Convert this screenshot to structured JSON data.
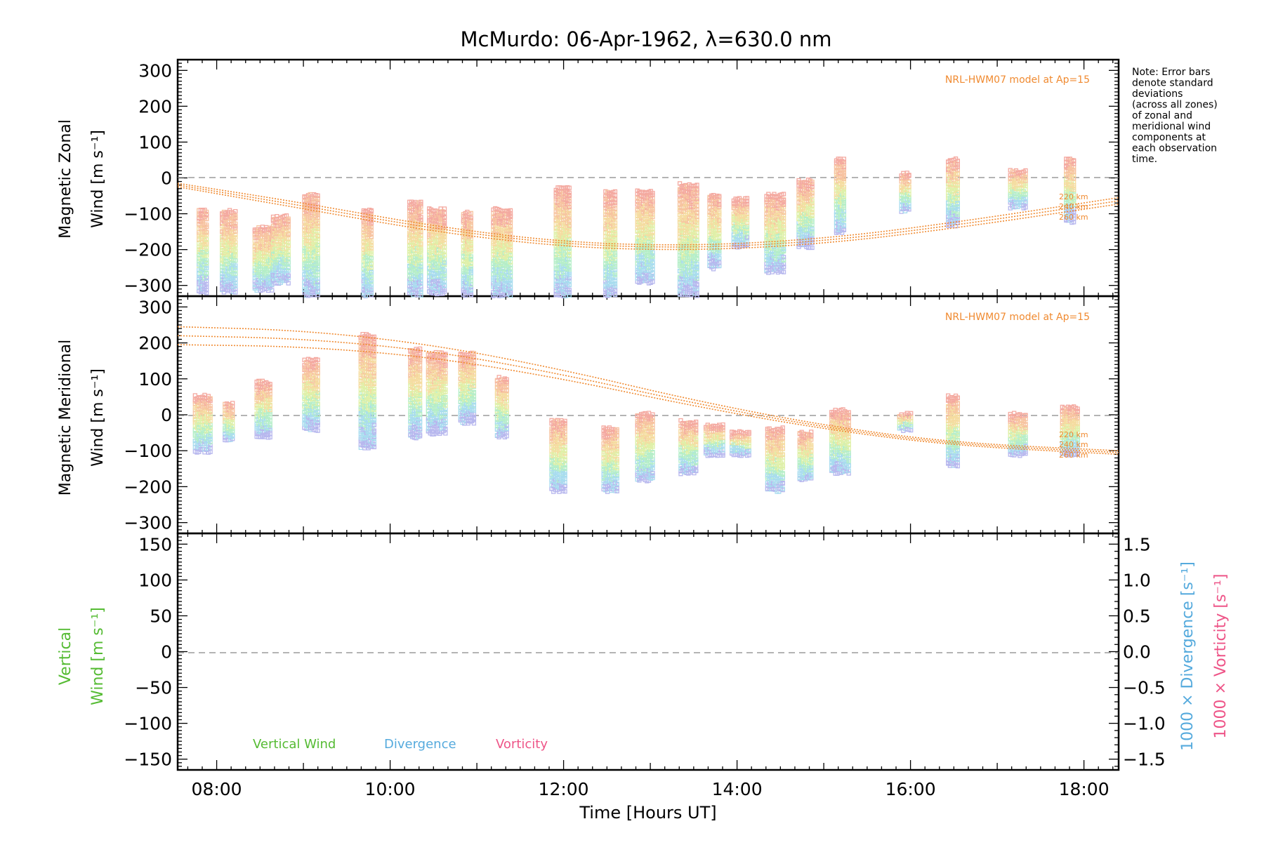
{
  "title": "McMurdo: 06-Apr-1962, λ=630.0 nm",
  "note": [
    "Note: Error bars",
    "denote standard",
    "deviations",
    "(across all zones)",
    "of zonal and",
    "meridional wind",
    "components at",
    "each observation",
    "time."
  ],
  "x_axis": {
    "label": "Time [Hours UT]",
    "ticks": [
      "08:00",
      "10:00",
      "12:00",
      "14:00",
      "16:00",
      "18:00"
    ]
  },
  "panels": {
    "zonal": {
      "ylabel_lines": [
        "Magnetic Zonal",
        "Wind [m s⁻¹]"
      ],
      "yticks": [
        "300",
        "200",
        "100",
        "0",
        "−100",
        "−200",
        "−300"
      ],
      "model_label": "NRL-HWM07 model at Ap=15",
      "altitudes": [
        "220 km",
        "240 km",
        "260 km"
      ]
    },
    "meridional": {
      "ylabel_lines": [
        "Magnetic Meridional",
        "Wind [m s⁻¹]"
      ],
      "yticks": [
        "300",
        "200",
        "100",
        "0",
        "−100",
        "−200",
        "−300"
      ],
      "model_label": "NRL-HWM07 model at Ap=15",
      "altitudes": [
        "220 km",
        "240 km",
        "260 km"
      ]
    },
    "vertical": {
      "ylabel_lines": [
        "Vertical",
        "Wind [m s⁻¹]"
      ],
      "yticks": [
        "150",
        "100",
        "50",
        "0",
        "−50",
        "−100",
        "−150"
      ],
      "right_yticks": [
        "1.5",
        "1.0",
        "0.5",
        "0.0",
        "−0.5",
        "−1.0",
        "−1.5"
      ],
      "right_label_div": "1000 × Divergence [s⁻¹]",
      "right_label_vort": "1000 × Vorticity [s⁻¹]",
      "legend": [
        "Vertical Wind",
        "Divergence",
        "Vorticity"
      ]
    }
  },
  "colors": {
    "model": "#f08a30",
    "vertical": "#55bb33",
    "divergence": "#55aadd",
    "vorticity": "#ee5588",
    "zero_line": "#888888"
  },
  "chart_data": [
    {
      "type": "scatter",
      "title": "McMurdo: 06-Apr-1962, λ=630.0 nm",
      "ylabel": "Magnetic Zonal Wind [m s⁻¹]",
      "xlabel": "Time [Hours UT]",
      "xlim": [
        7.55,
        18.4
      ],
      "ylim": [
        -330,
        330
      ],
      "grid": false,
      "observation_groups": [
        {
          "t": 7.85,
          "low": -320,
          "high": -90
        },
        {
          "t": 8.15,
          "low": -315,
          "high": -95
        },
        {
          "t": 8.55,
          "low": -310,
          "high": -140
        },
        {
          "t": 8.75,
          "low": -290,
          "high": -110
        },
        {
          "t": 9.1,
          "low": -330,
          "high": -50
        },
        {
          "t": 9.75,
          "low": -330,
          "high": -90
        },
        {
          "t": 10.3,
          "low": -330,
          "high": -70
        },
        {
          "t": 10.55,
          "low": -320,
          "high": -90
        },
        {
          "t": 10.9,
          "low": -330,
          "high": -100
        },
        {
          "t": 11.3,
          "low": -330,
          "high": -90
        },
        {
          "t": 12.0,
          "low": -330,
          "high": -30
        },
        {
          "t": 12.55,
          "low": -330,
          "high": -40
        },
        {
          "t": 12.95,
          "low": -290,
          "high": -40
        },
        {
          "t": 13.45,
          "low": -330,
          "high": -20
        },
        {
          "t": 13.75,
          "low": -250,
          "high": -50
        },
        {
          "t": 14.05,
          "low": -190,
          "high": -60
        },
        {
          "t": 14.45,
          "low": -260,
          "high": -50
        },
        {
          "t": 14.8,
          "low": -190,
          "high": -10
        },
        {
          "t": 15.2,
          "low": -150,
          "high": 50
        },
        {
          "t": 15.95,
          "low": -90,
          "high": 10
        },
        {
          "t": 16.5,
          "low": -130,
          "high": 50
        },
        {
          "t": 17.25,
          "low": -80,
          "high": 20
        },
        {
          "t": 17.85,
          "low": -120,
          "high": 50
        }
      ],
      "model_series": [
        {
          "name": "220 km",
          "x": [
            7.55,
            9,
            10.5,
            12,
            13.5,
            15,
            16.5,
            18.4
          ],
          "y": [
            -15,
            -70,
            -135,
            -180,
            -190,
            -170,
            -125,
            -55
          ]
        },
        {
          "name": "240 km",
          "x": [
            7.55,
            9,
            10.5,
            12,
            13.5,
            15,
            16.5,
            18.4
          ],
          "y": [
            -20,
            -78,
            -142,
            -186,
            -196,
            -177,
            -133,
            -64
          ]
        },
        {
          "name": "260 km",
          "x": [
            7.55,
            9,
            10.5,
            12,
            13.5,
            15,
            16.5,
            18.4
          ],
          "y": [
            -25,
            -86,
            -150,
            -193,
            -203,
            -184,
            -141,
            -73
          ]
        }
      ]
    },
    {
      "type": "scatter",
      "ylabel": "Magnetic Meridional Wind [m s⁻¹]",
      "xlabel": "Time [Hours UT]",
      "xlim": [
        7.55,
        18.4
      ],
      "ylim": [
        -330,
        330
      ],
      "grid": false,
      "observation_groups": [
        {
          "t": 7.85,
          "low": -100,
          "high": 50
        },
        {
          "t": 8.15,
          "low": -70,
          "high": 30
        },
        {
          "t": 8.55,
          "low": -60,
          "high": 90
        },
        {
          "t": 9.1,
          "low": -40,
          "high": 150
        },
        {
          "t": 9.75,
          "low": -90,
          "high": 220
        },
        {
          "t": 10.3,
          "low": -60,
          "high": 180
        },
        {
          "t": 10.55,
          "low": -50,
          "high": 170
        },
        {
          "t": 10.9,
          "low": -20,
          "high": 170
        },
        {
          "t": 11.3,
          "low": -60,
          "high": 100
        },
        {
          "t": 11.95,
          "low": -210,
          "high": -20
        },
        {
          "t": 12.55,
          "low": -210,
          "high": -40
        },
        {
          "t": 12.95,
          "low": -180,
          "high": 0
        },
        {
          "t": 13.45,
          "low": -160,
          "high": -20
        },
        {
          "t": 13.75,
          "low": -110,
          "high": -30
        },
        {
          "t": 14.05,
          "low": -110,
          "high": -50
        },
        {
          "t": 14.45,
          "low": -210,
          "high": -40
        },
        {
          "t": 14.8,
          "low": -180,
          "high": -50
        },
        {
          "t": 15.2,
          "low": -160,
          "high": 10
        },
        {
          "t": 15.95,
          "low": -40,
          "high": 0
        },
        {
          "t": 16.5,
          "low": -140,
          "high": 50
        },
        {
          "t": 17.25,
          "low": -110,
          "high": 0
        },
        {
          "t": 17.85,
          "low": -110,
          "high": 20
        }
      ],
      "model_series": [
        {
          "name": "220 km",
          "x": [
            7.55,
            9,
            10.5,
            12,
            13.5,
            15,
            16.5,
            18.4
          ],
          "y": [
            245,
            235,
            195,
            125,
            40,
            -30,
            -78,
            -100
          ]
        },
        {
          "name": "240 km",
          "x": [
            7.55,
            9,
            10.5,
            12,
            13.5,
            15,
            16.5,
            18.4
          ],
          "y": [
            220,
            212,
            178,
            112,
            32,
            -35,
            -82,
            -105
          ]
        },
        {
          "name": "260 km",
          "x": [
            7.55,
            9,
            10.5,
            12,
            13.5,
            15,
            16.5,
            18.4
          ],
          "y": [
            195,
            190,
            160,
            100,
            24,
            -40,
            -86,
            -110
          ]
        }
      ]
    },
    {
      "type": "line",
      "ylabel": "Vertical Wind [m s⁻¹]",
      "xlabel": "Time [Hours UT]",
      "xlim": [
        7.55,
        18.4
      ],
      "ylim": [
        -165,
        165
      ],
      "y2lim": [
        -1.65,
        1.65
      ],
      "grid": false,
      "series": [
        {
          "name": "Vertical Wind",
          "x": [],
          "y": []
        },
        {
          "name": "Divergence",
          "x": [],
          "y": []
        },
        {
          "name": "Vorticity",
          "x": [],
          "y": []
        }
      ]
    }
  ]
}
